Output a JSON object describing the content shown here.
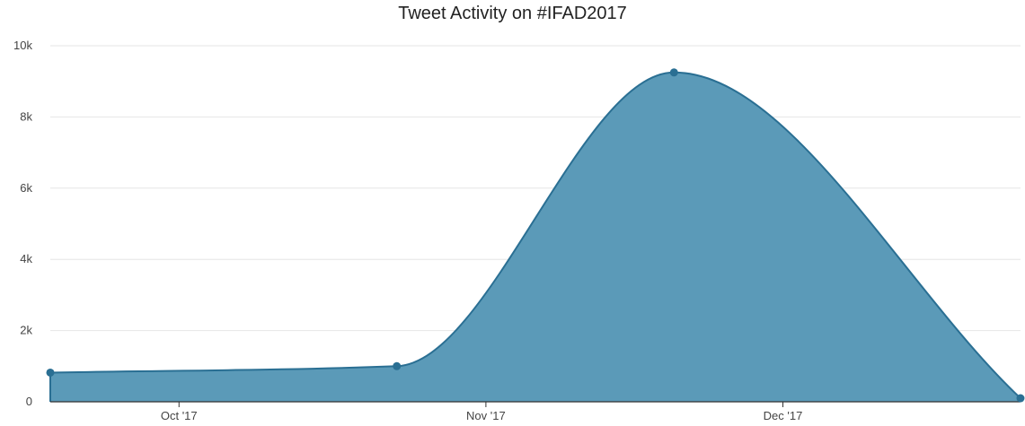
{
  "chart_data": {
    "type": "area",
    "title": "Tweet Activity on #IFAD2017",
    "xlabel": "",
    "ylabel": "",
    "x": [
      "2017-09-18",
      "2017-10-23",
      "2017-11-20",
      "2017-12-25"
    ],
    "series": [
      {
        "values": [
          820,
          1000,
          9250,
          100
        ]
      }
    ],
    "x_ticks": [
      {
        "date": "2017-10-01",
        "label": "Oct '17"
      },
      {
        "date": "2017-11-01",
        "label": "Nov '17"
      },
      {
        "date": "2017-12-01",
        "label": "Dec '17"
      }
    ],
    "y_ticks": [
      {
        "value": 0,
        "label": "0"
      },
      {
        "value": 2000,
        "label": "2k"
      },
      {
        "value": 4000,
        "label": "4k"
      },
      {
        "value": 6000,
        "label": "6k"
      },
      {
        "value": 8000,
        "label": "8k"
      },
      {
        "value": 10000,
        "label": "10k"
      }
    ],
    "ylim": [
      0,
      10000
    ],
    "xlim": [
      "2017-09-18",
      "2017-12-25"
    ],
    "grid": true,
    "legend": "none",
    "colors": {
      "fill": "#5b9ab8",
      "line": "#2a6f93",
      "point": "#2a6f93",
      "grid": "#e6e6e6",
      "axis": "#333333"
    }
  }
}
